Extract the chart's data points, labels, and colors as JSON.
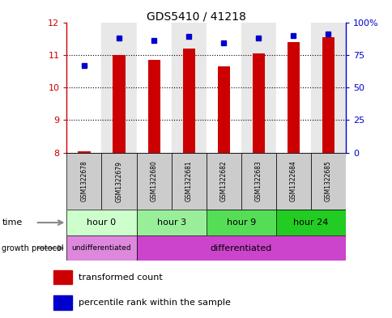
{
  "title": "GDS5410 / 41218",
  "samples": [
    "GSM1322678",
    "GSM1322679",
    "GSM1322680",
    "GSM1322681",
    "GSM1322682",
    "GSM1322683",
    "GSM1322684",
    "GSM1322685"
  ],
  "transformed_counts": [
    8.05,
    11.0,
    10.85,
    11.2,
    10.65,
    11.05,
    11.4,
    11.55
  ],
  "percentile_ranks": [
    67,
    88,
    86,
    89,
    84,
    88,
    90,
    91
  ],
  "bar_color": "#cc0000",
  "dot_color": "#0000cc",
  "ylim_left": [
    8,
    12
  ],
  "ylim_right": [
    0,
    100
  ],
  "yticks_left": [
    8,
    9,
    10,
    11,
    12
  ],
  "yticks_right": [
    0,
    25,
    50,
    75,
    100
  ],
  "ytick_labels_right": [
    "0",
    "25",
    "50",
    "75",
    "100%"
  ],
  "time_colors": [
    "#ccffcc",
    "#99ee99",
    "#55dd55",
    "#22cc22"
  ],
  "time_labels": [
    "hour 0",
    "hour 3",
    "hour 9",
    "hour 24"
  ],
  "undiff_color": "#dd88dd",
  "diff_color": "#cc44cc",
  "left_axis_color": "#cc0000",
  "right_axis_color": "#0000cc",
  "sample_box_color": "#cccccc",
  "bar_width": 0.35
}
